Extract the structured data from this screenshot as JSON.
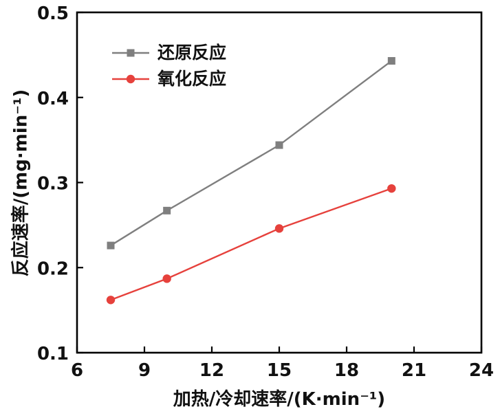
{
  "chart_data": {
    "type": "line",
    "x": [
      7.5,
      10,
      15,
      20
    ],
    "series": [
      {
        "name": "还原反应",
        "values": [
          0.226,
          0.267,
          0.344,
          0.443
        ],
        "color": "#7f7f7f",
        "marker": "square"
      },
      {
        "name": "氧化反应",
        "values": [
          0.162,
          0.187,
          0.246,
          0.293
        ],
        "color": "#e6413c",
        "marker": "circle"
      }
    ],
    "title": "",
    "xlabel": "加热/冷却速率/(K·min⁻¹)",
    "ylabel": "反应速率/(mg·min⁻¹)",
    "xlim": [
      6,
      24
    ],
    "ylim": [
      0.1,
      0.5
    ],
    "xticks": [
      6,
      9,
      12,
      15,
      18,
      21,
      24
    ],
    "yticks": [
      0.1,
      0.2,
      0.3,
      0.4,
      0.5
    ],
    "grid": false,
    "legend_position": "upper-left-inside",
    "colors": {
      "axis": "#000000",
      "background": "#ffffff"
    }
  }
}
